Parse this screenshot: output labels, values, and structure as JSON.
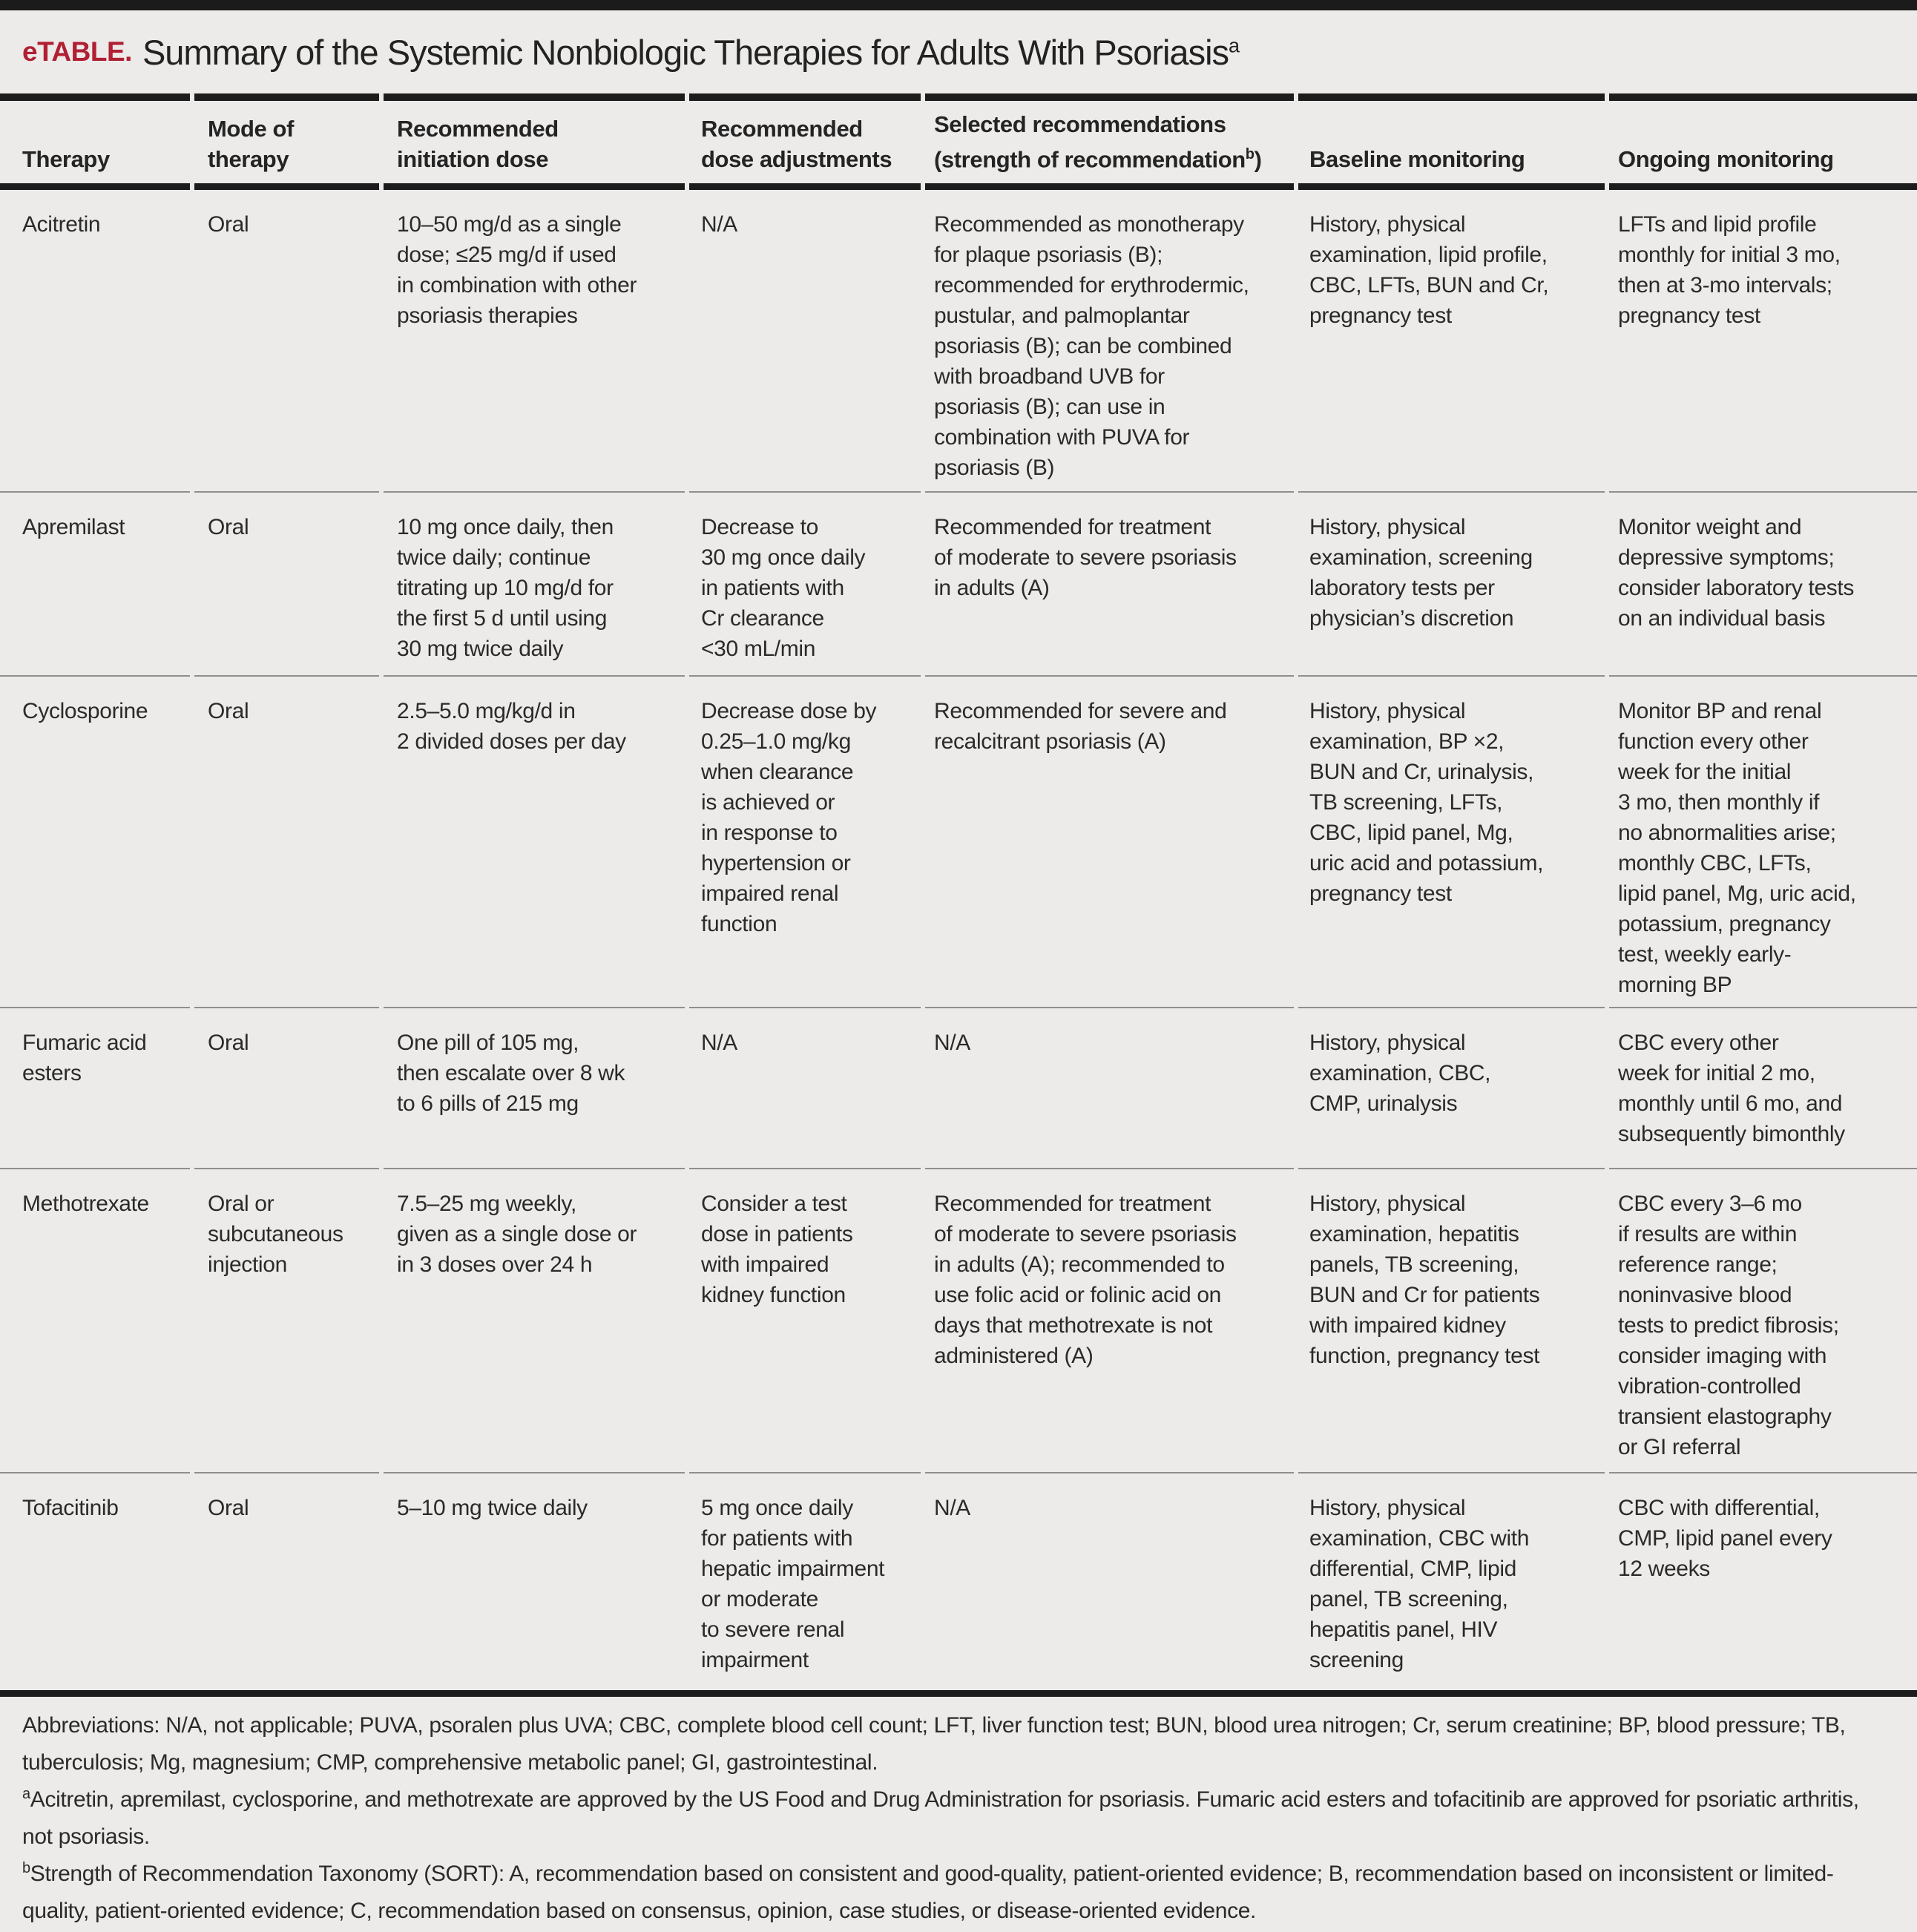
{
  "title": {
    "label": "eTABLE.",
    "text": "Summary of the Systemic Nonbiologic Therapies for Adults With Psoriasis",
    "sup": "a"
  },
  "colors": {
    "accent_red": "#b11f33",
    "rule_black": "#1c1c1c",
    "separator_gray": "#8f8f8f",
    "background": "#ecebe9",
    "text": "#2a2a2a"
  },
  "header": {
    "therapy": "Therapy",
    "mode": "Mode of\ntherapy",
    "initiation": "Recommended\ninitiation dose",
    "adjustments": "Recommended\ndose adjustments",
    "recommendations_pre": "Selected recommendations\n(strength of recommendation",
    "recommendations_sup": "b",
    "recommendations_post": ")",
    "baseline": "Baseline monitoring",
    "ongoing": "Ongoing monitoring"
  },
  "rows": [
    {
      "therapy": "Acitretin",
      "mode": "Oral",
      "initiation": "10–50 mg/d as a single\ndose; ≤25 mg/d if used\nin combination with other\npsoriasis therapies",
      "adjustments": "N/A",
      "recommendations": "Recommended as monotherapy\nfor plaque psoriasis (B);\nrecommended for erythrodermic,\npustular, and palmoplantar\npsoriasis (B); can be combined\nwith broadband UVB for\npsoriasis (B); can use in\ncombination with PUVA for\npsoriasis (B)",
      "baseline": "History, physical\nexamination, lipid profile,\nCBC, LFTs, BUN and Cr,\npregnancy test",
      "ongoing": "LFTs and lipid profile\nmonthly for initial 3 mo,\nthen at 3-mo intervals;\npregnancy test"
    },
    {
      "therapy": "Apremilast",
      "mode": "Oral",
      "initiation": "10 mg once daily, then\ntwice daily; continue\ntitrating up 10 mg/d for\nthe first 5 d until using\n30 mg twice daily",
      "adjustments": "Decrease to\n30 mg once daily\nin patients with\nCr clearance\n<30 mL/min",
      "recommendations": "Recommended for treatment\nof moderate to severe psoriasis\nin adults (A)",
      "baseline": "History, physical\nexamination, screening\nlaboratory tests per\nphysician’s discretion",
      "ongoing": "Monitor weight and\ndepressive symptoms;\nconsider laboratory tests\non an individual basis"
    },
    {
      "therapy": "Cyclosporine",
      "mode": "Oral",
      "initiation": "2.5–5.0 mg/kg/d in\n2 divided doses per day",
      "adjustments": "Decrease dose by\n0.25–1.0 mg/kg\nwhen clearance\nis achieved or\nin response to\nhypertension or\nimpaired renal\nfunction",
      "recommendations": "Recommended for severe and\nrecalcitrant psoriasis (A)",
      "baseline": "History, physical\nexamination, BP ×2,\nBUN and Cr, urinalysis,\nTB screening, LFTs,\nCBC, lipid panel, Mg,\nuric acid and potassium,\npregnancy test",
      "ongoing": "Monitor BP and renal\nfunction every other\nweek for the initial\n3 mo, then monthly if\nno abnormalities arise;\nmonthly CBC, LFTs,\nlipid panel, Mg, uric acid,\npotassium, pregnancy\ntest, weekly early-\nmorning BP"
    },
    {
      "therapy": "Fumaric acid\nesters",
      "mode": "Oral",
      "initiation": "One pill of 105 mg,\nthen escalate over 8 wk\nto 6 pills of 215 mg",
      "adjustments": "N/A",
      "recommendations": "N/A",
      "baseline": "History, physical\nexamination, CBC,\nCMP, urinalysis",
      "ongoing": "CBC every other\nweek for initial 2 mo,\nmonthly until 6 mo, and\nsubsequently bimonthly"
    },
    {
      "therapy": "Methotrexate",
      "mode": "Oral or\nsubcutaneous\ninjection",
      "initiation": "7.5–25 mg weekly,\ngiven as a single dose or\nin 3 doses over 24 h",
      "adjustments": "Consider a test\ndose in patients\nwith impaired\nkidney function",
      "recommendations": "Recommended for treatment\nof moderate to severe psoriasis\nin adults (A); recommended to\nuse folic acid or folinic acid on\ndays that methotrexate is not\nadministered (A)",
      "baseline": "History, physical\nexamination, hepatitis\npanels, TB screening,\nBUN and Cr for patients\nwith impaired kidney\nfunction, pregnancy test",
      "ongoing": "CBC every 3–6 mo\nif results are within\nreference range;\nnoninvasive blood\ntests to predict fibrosis;\nconsider imaging with\nvibration-controlled\ntransient elastography\nor GI referral"
    },
    {
      "therapy": "Tofacitinib",
      "mode": "Oral",
      "initiation": "5–10 mg twice daily",
      "adjustments": "5 mg once daily\nfor patients with\nhepatic impairment\nor moderate\nto severe renal\nimpairment",
      "recommendations": "N/A",
      "baseline": "History, physical\nexamination, CBC with\ndifferential, CMP, lipid\npanel, TB screening,\nhepatitis panel, HIV\nscreening",
      "ongoing": "CBC with differential,\nCMP, lipid panel every\n12 weeks"
    }
  ],
  "footnotes": {
    "abbreviations": "Abbreviations: N/A, not applicable; PUVA, psoralen plus UVA; CBC, complete blood cell count; LFT, liver function test; BUN, blood urea nitrogen; Cr, serum creatinine; BP, blood pressure; TB, tuberculosis; Mg, magnesium; CMP, comprehensive metabolic panel; GI, gastrointestinal.",
    "a_sup": "a",
    "a_text": "Acitretin, apremilast, cyclosporine, and methotrexate are approved by the US Food and Drug Administration for psoriasis. Fumaric acid esters and tofacitinib are approved for psoriatic arthritis, not psoriasis.",
    "b_sup": "b",
    "b_text": "Strength of Recommendation Taxonomy (SORT): A, recommendation based on consistent and good-quality, patient-oriented evidence; B, recommendation based on inconsistent or limited-quality, patient-oriented evidence; C, recommendation based on consensus, opinion, case studies, or disease-oriented evidence."
  }
}
